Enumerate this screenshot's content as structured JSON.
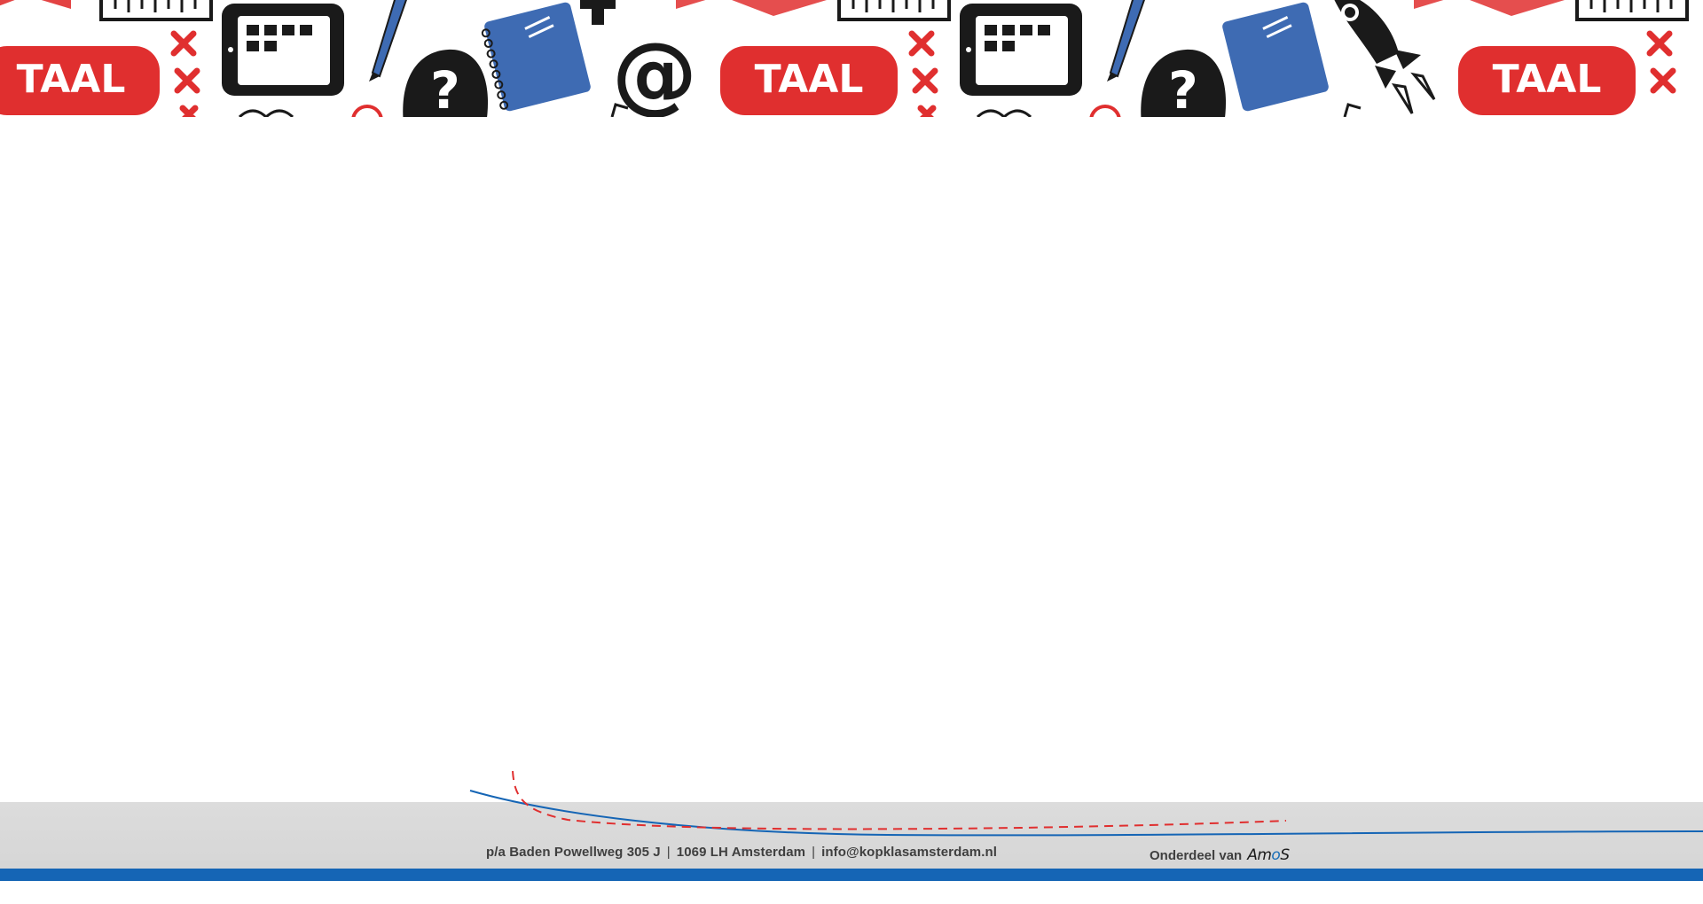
{
  "banner": {
    "badge_label": "TAAL",
    "question_mark": "?",
    "at_sign": "@",
    "plus_sign": "+",
    "accent_red": "#e02f2f",
    "accent_blue": "#3e6bb3",
    "ink_black": "#1a1a1a"
  },
  "footer": {
    "address_parts": [
      "p/a Baden Powellweg 305 J",
      "1069 LH Amsterdam",
      "info@kopklasamsterdam.nl"
    ],
    "separator": "|",
    "partner_label": "Onderdeel van",
    "partner_logo": {
      "pre": "Am",
      "o": "o",
      "post": "S"
    },
    "bar_color": "#1565b5"
  }
}
